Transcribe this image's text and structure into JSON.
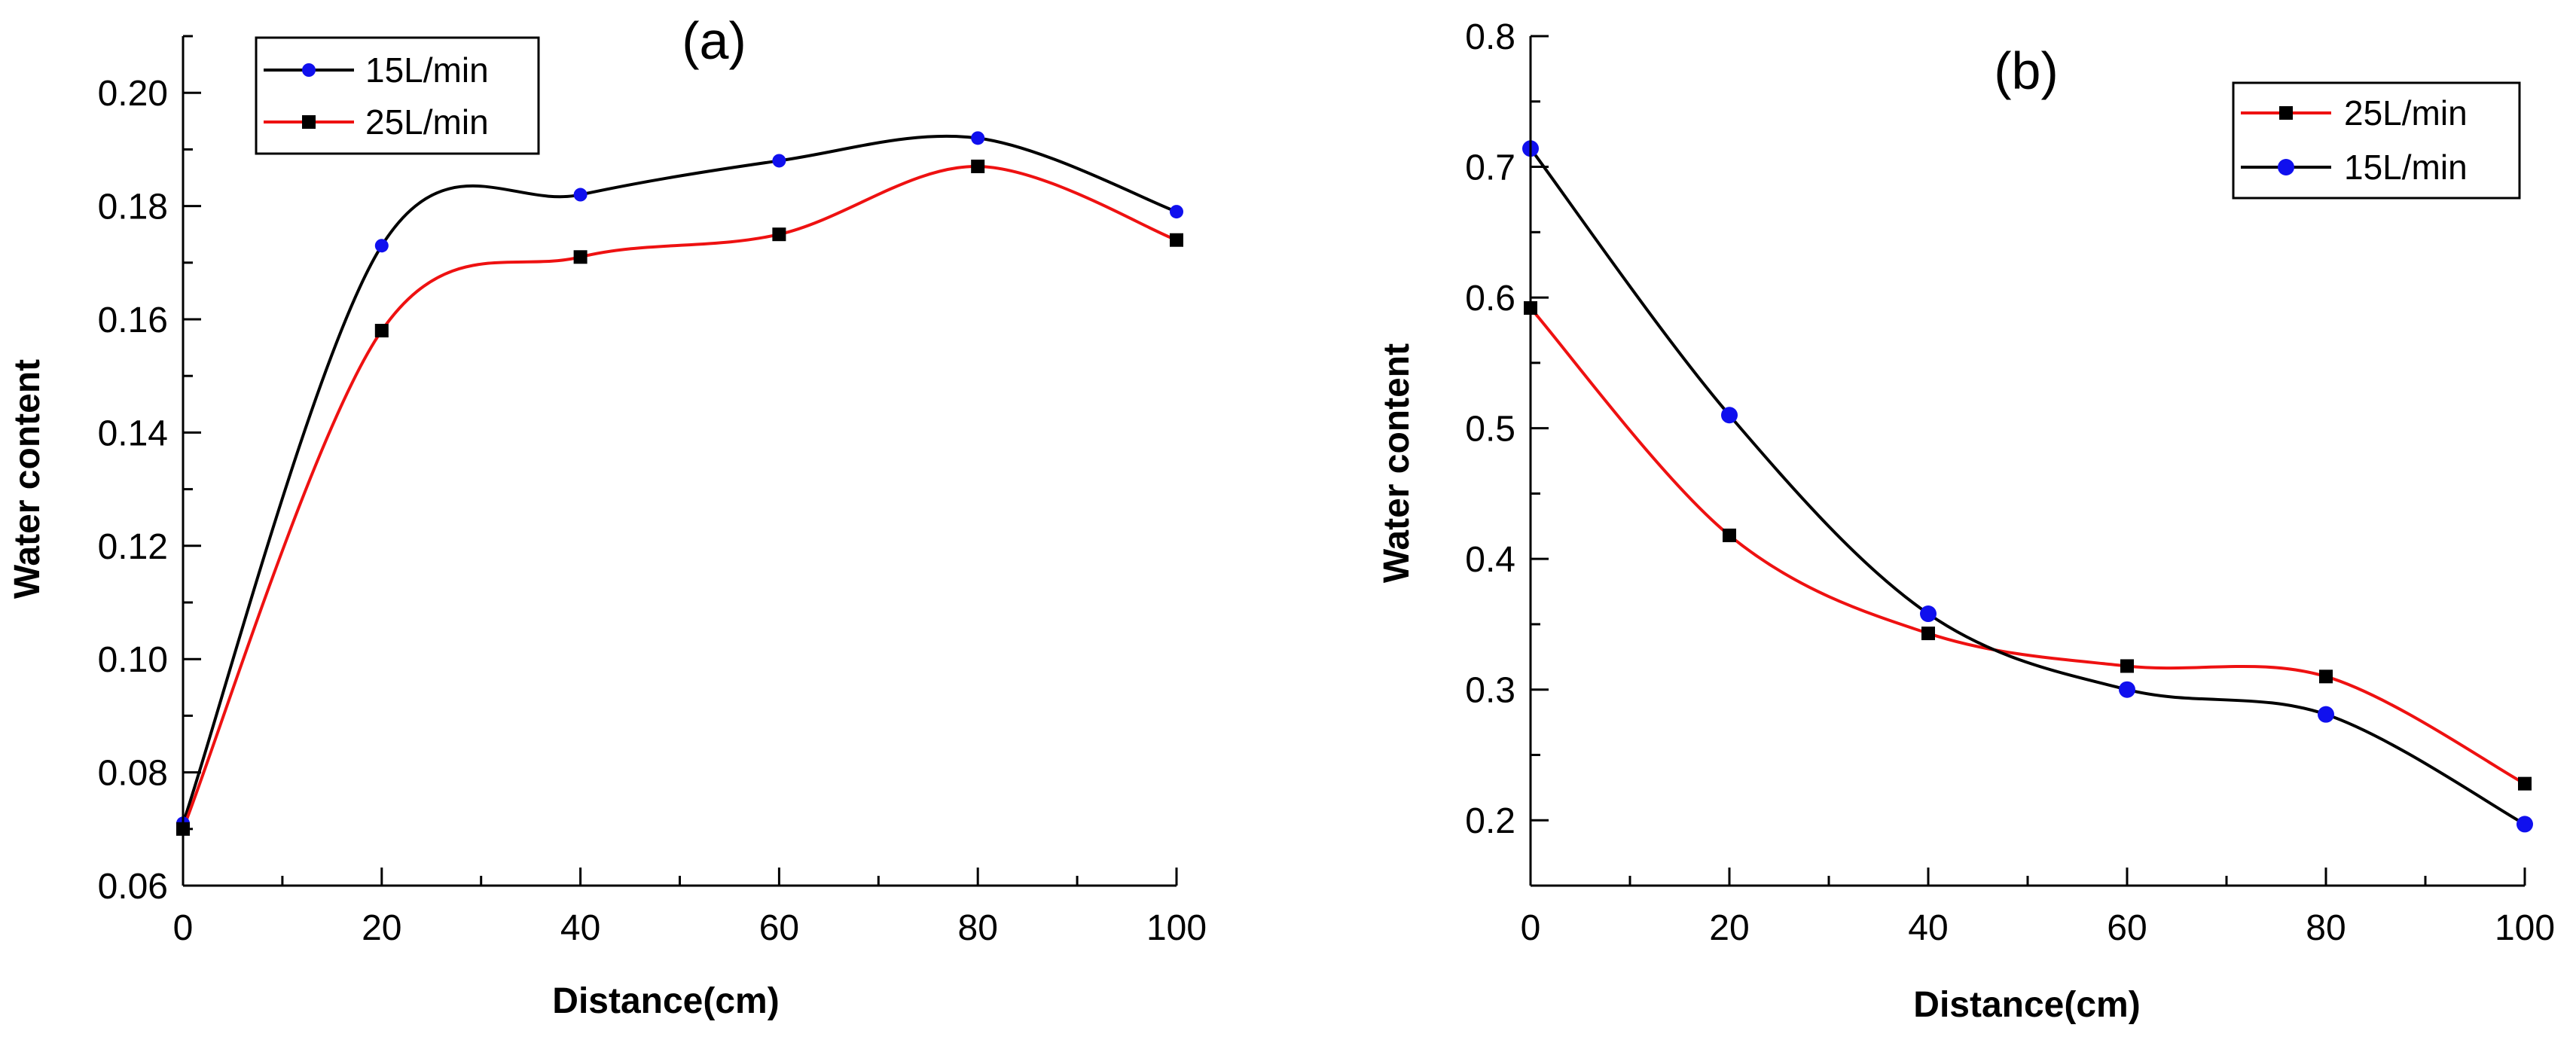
{
  "chart_data": [
    {
      "type": "line",
      "panel_label": "(a)",
      "xlabel": "Distance(cm)",
      "ylabel": "Water content",
      "xlim": [
        0,
        100
      ],
      "ylim": [
        0.06,
        0.21
      ],
      "x_major_ticks": [
        0,
        20,
        40,
        60,
        80,
        100
      ],
      "x_minor_step": 10,
      "y_major_ticks": [
        0.06,
        0.08,
        0.1,
        0.12,
        0.14,
        0.16,
        0.18,
        0.2
      ],
      "y_minor_step": 0.01,
      "x_tick_labels": [
        "0",
        "20",
        "40",
        "60",
        "80",
        "100"
      ],
      "y_tick_labels": [
        "0.06",
        "0.08",
        "0.10",
        "0.12",
        "0.14",
        "0.16",
        "0.18",
        "0.20"
      ],
      "legend": {
        "placement": "top-left"
      },
      "series": [
        {
          "name": "15L/min",
          "color": "#000000",
          "marker": "circle",
          "marker_color": "#1010ee",
          "x": [
            0,
            20,
            40,
            60,
            80,
            100
          ],
          "values": [
            0.071,
            0.173,
            0.182,
            0.188,
            0.192,
            0.179
          ]
        },
        {
          "name": "25L/min",
          "color": "#ee1111",
          "marker": "square",
          "marker_color": "#000000",
          "x": [
            0,
            20,
            40,
            60,
            80,
            100
          ],
          "values": [
            0.07,
            0.158,
            0.171,
            0.175,
            0.187,
            0.174
          ]
        }
      ]
    },
    {
      "type": "line",
      "panel_label": "(b)",
      "xlabel": "Distance(cm)",
      "ylabel": "Water content",
      "xlim": [
        0,
        100
      ],
      "ylim": [
        0.15,
        0.8
      ],
      "x_major_ticks": [
        0,
        20,
        40,
        60,
        80,
        100
      ],
      "x_minor_step": 10,
      "y_major_ticks": [
        0.2,
        0.3,
        0.4,
        0.5,
        0.6,
        0.7,
        0.8
      ],
      "y_minor_step": 0.05,
      "x_tick_labels": [
        "0",
        "20",
        "40",
        "60",
        "80",
        "100"
      ],
      "y_tick_labels": [
        "0.2",
        "0.3",
        "0.4",
        "0.5",
        "0.6",
        "0.7",
        "0.8"
      ],
      "legend": {
        "placement": "top-right"
      },
      "series": [
        {
          "name": "25L/min",
          "color": "#ee1111",
          "marker": "square",
          "marker_color": "#000000",
          "x": [
            0,
            20,
            40,
            60,
            80,
            100
          ],
          "values": [
            0.592,
            0.418,
            0.343,
            0.318,
            0.31,
            0.228
          ]
        },
        {
          "name": "15L/min",
          "color": "#000000",
          "marker": "circle",
          "marker_color": "#1010ee",
          "x": [
            0,
            20,
            40,
            60,
            80,
            100
          ],
          "values": [
            0.714,
            0.51,
            0.358,
            0.3,
            0.281,
            0.197
          ]
        }
      ]
    }
  ]
}
